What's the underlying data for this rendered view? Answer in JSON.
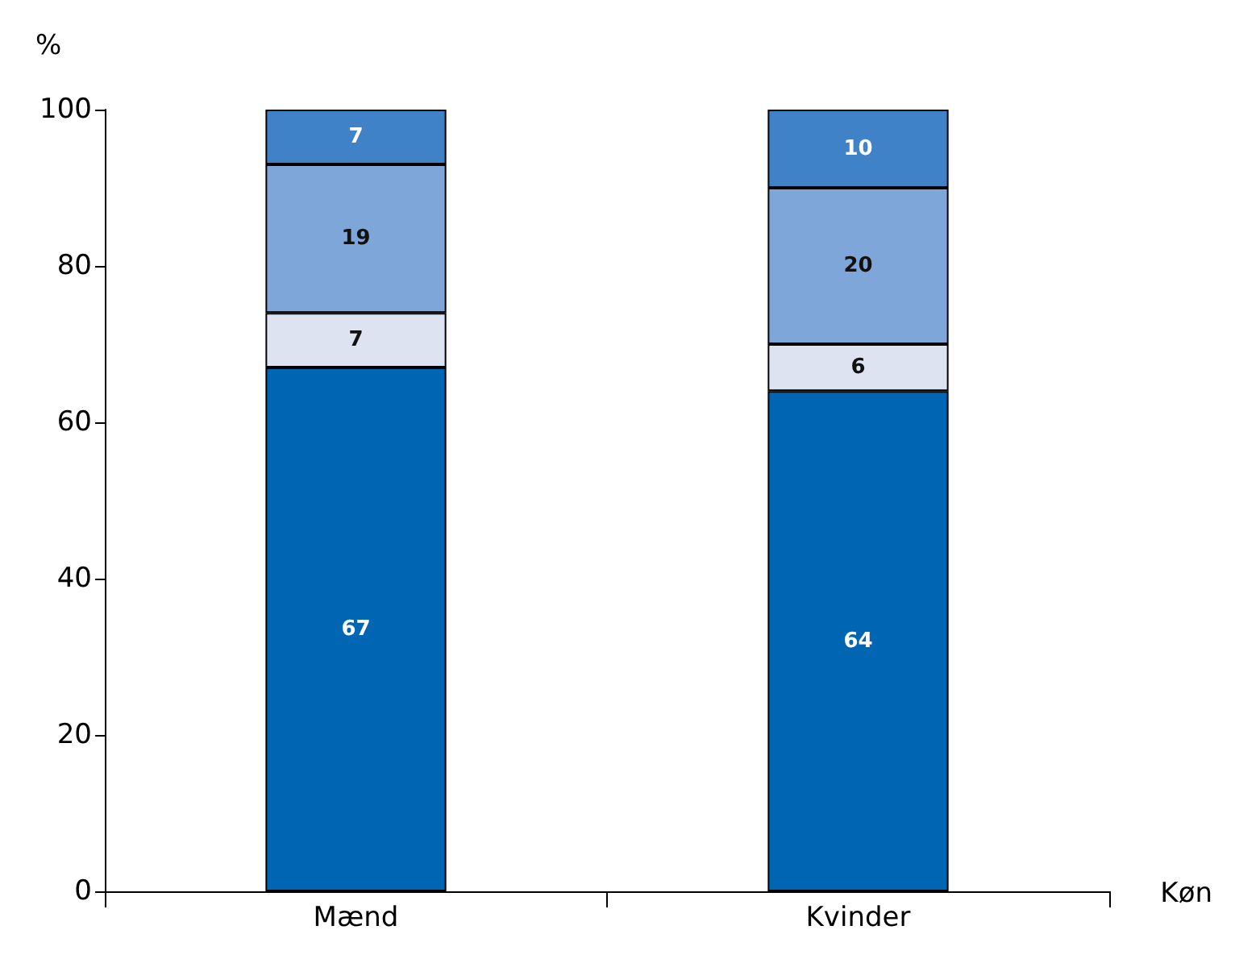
{
  "chart_data": {
    "type": "bar",
    "stacked": true,
    "categories": [
      "Mænd",
      "Kvinder"
    ],
    "series": [
      {
        "color": "#0066b3",
        "values": [
          67,
          64
        ]
      },
      {
        "color": "#dde3f1",
        "values": [
          7,
          6
        ]
      },
      {
        "color": "#7ea6d8",
        "values": [
          19,
          20
        ]
      },
      {
        "color": "#3f82c8",
        "values": [
          7,
          10
        ]
      }
    ],
    "ylabel": "%",
    "xlabel": "Køn",
    "ylim": [
      0,
      100
    ],
    "yticks": [
      0,
      20,
      40,
      60,
      80,
      100
    ],
    "grid": false,
    "data_labels": true
  }
}
